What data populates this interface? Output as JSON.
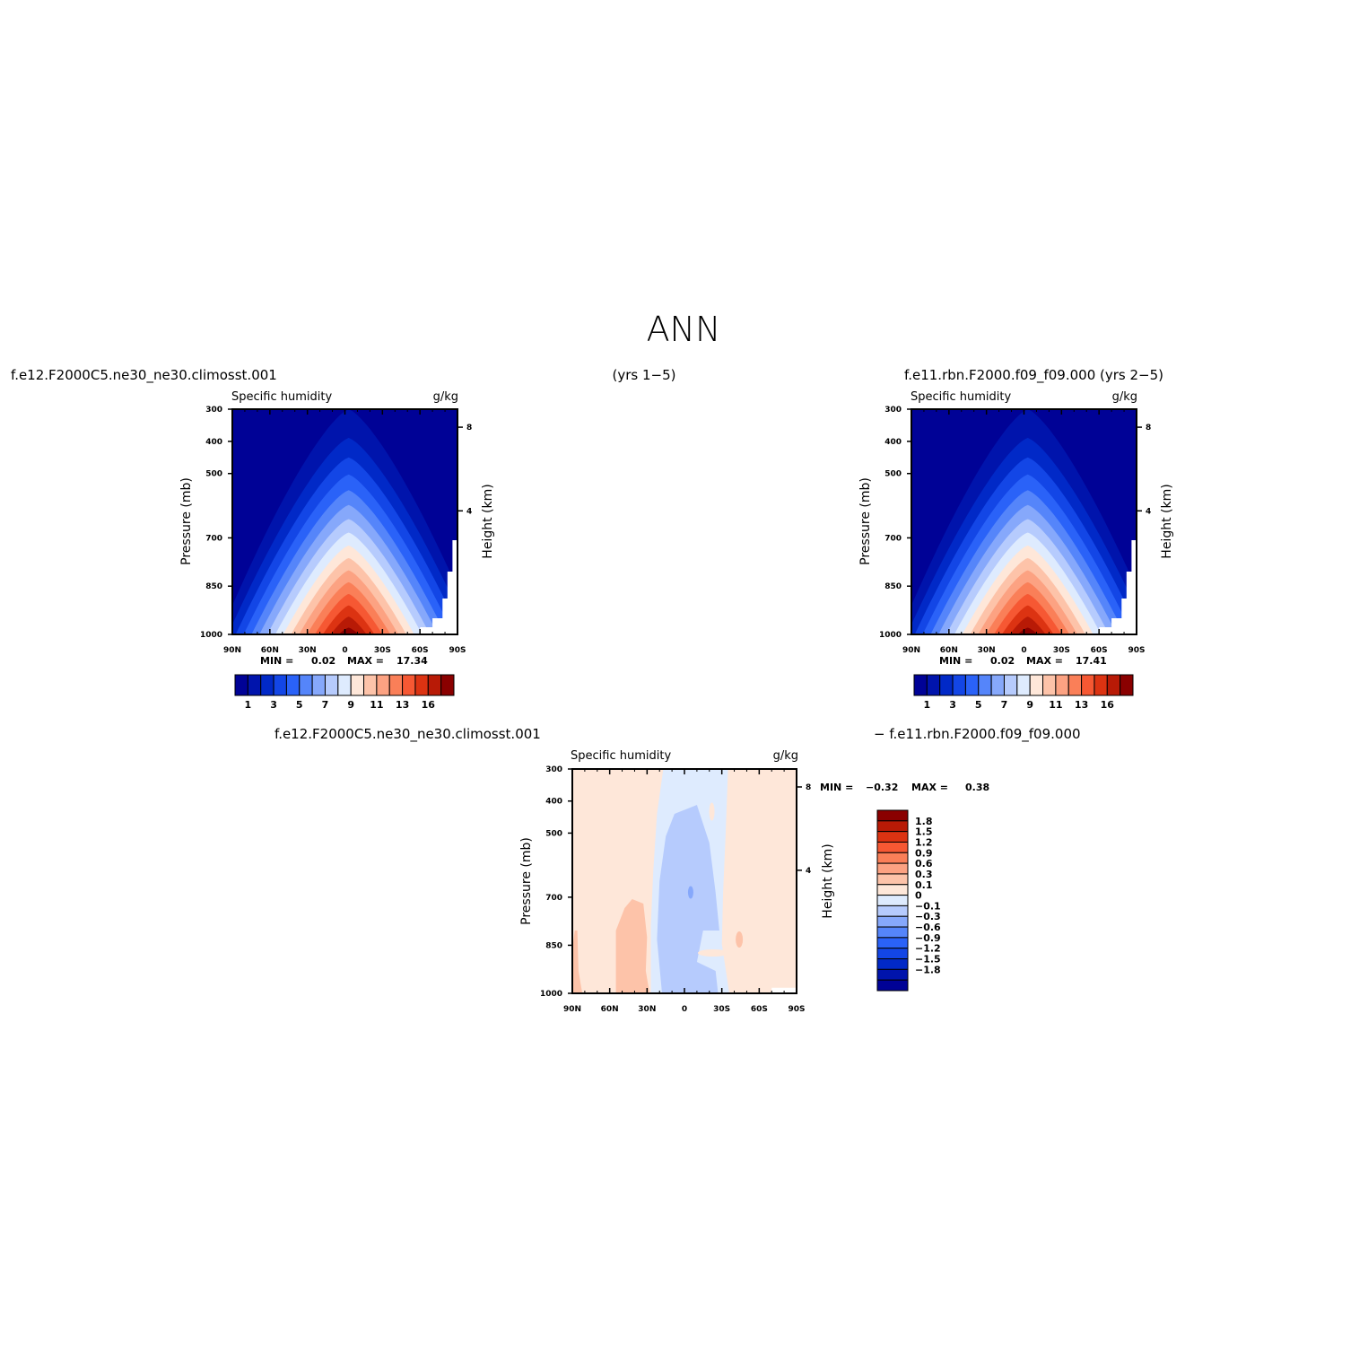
{
  "page": {
    "title": "ANN",
    "case1_header": "f.e12.F2000C5.ne30_ne30.climosst.001",
    "years_header": "(yrs 1−5)",
    "case2_header": "f.e11.rbn.F2000.f09_f09.000 (yrs 2−5)",
    "diff_header_left": "f.e12.F2000C5.ne30_ne30.climosst.001",
    "diff_header_right": "− f.e11.rbn.F2000.f09_f09.000"
  },
  "colors": {
    "levels_main": [
      "#000296",
      "#0014ac",
      "#0129c7",
      "#1346e6",
      "#2a62f8",
      "#5585fa",
      "#86a8fb",
      "#b6cbfd",
      "#deebfe",
      "#fee7d9",
      "#fdc3a9",
      "#fca282",
      "#fa7f58",
      "#f65833",
      "#dc3312",
      "#b81a06",
      "#8a0000"
    ],
    "levels_diff": [
      "#000296",
      "#0014ac",
      "#0129c7",
      "#1346e6",
      "#2a62f8",
      "#5585fa",
      "#86a8fb",
      "#b6cbfd",
      "#deebfe",
      "#fee7d9",
      "#fdc3a9",
      "#fca282",
      "#fa7f58",
      "#f65833",
      "#dc3312",
      "#b81a06",
      "#8a0000"
    ]
  },
  "chart_data": [
    {
      "type": "contour",
      "panel": "top-left",
      "subtitle_left": "Specific humidity",
      "subtitle_right": "g/kg",
      "ylabel": "Pressure (mb)",
      "ylabel_right": "Height (km)",
      "x_ticks": [
        "90N",
        "60N",
        "30N",
        "0",
        "30S",
        "60S",
        "90S"
      ],
      "y_ticks": [
        "300",
        "400",
        "500",
        "700",
        "850",
        "1000"
      ],
      "y_ticks_right": [
        "8",
        "4"
      ],
      "min_label": "MIN =",
      "min_value": "0.02",
      "max_label": "MAX =",
      "max_value": "17.34",
      "colorbar_labels": [
        "1",
        "3",
        "5",
        "7",
        "9",
        "11",
        "13",
        "16"
      ],
      "peak_latitude": -3,
      "peak_value": 17.34
    },
    {
      "type": "contour",
      "panel": "top-right",
      "subtitle_left": "Specific humidity",
      "subtitle_right": "g/kg",
      "ylabel": "Pressure (mb)",
      "ylabel_right": "Height (km)",
      "x_ticks": [
        "90N",
        "60N",
        "30N",
        "0",
        "30S",
        "60S",
        "90S"
      ],
      "y_ticks": [
        "300",
        "400",
        "500",
        "700",
        "850",
        "1000"
      ],
      "y_ticks_right": [
        "8",
        "4"
      ],
      "min_label": "MIN =",
      "min_value": "0.02",
      "max_label": "MAX =",
      "max_value": "17.41",
      "colorbar_labels": [
        "1",
        "3",
        "5",
        "7",
        "9",
        "11",
        "13",
        "16"
      ],
      "peak_latitude": -3,
      "peak_value": 17.41
    },
    {
      "type": "contour",
      "panel": "difference",
      "subtitle_left": "Specific humidity",
      "subtitle_right": "g/kg",
      "ylabel": "Pressure (mb)",
      "ylabel_right": "Height (km)",
      "x_ticks": [
        "90N",
        "60N",
        "30N",
        "0",
        "30S",
        "60S",
        "90S"
      ],
      "y_ticks": [
        "300",
        "400",
        "500",
        "700",
        "850",
        "1000"
      ],
      "y_ticks_right": [
        "8",
        "4"
      ],
      "min_label": "MIN =",
      "min_value": "−0.32",
      "max_label": "MAX =",
      "max_value": "0.38",
      "colorbar_labels": [
        "1.8",
        "1.5",
        "1.2",
        "0.9",
        "0.6",
        "0.3",
        "0.1",
        "0",
        "−0.1",
        "−0.3",
        "−0.6",
        "−0.9",
        "−1.2",
        "−1.5",
        "−1.8"
      ]
    }
  ]
}
